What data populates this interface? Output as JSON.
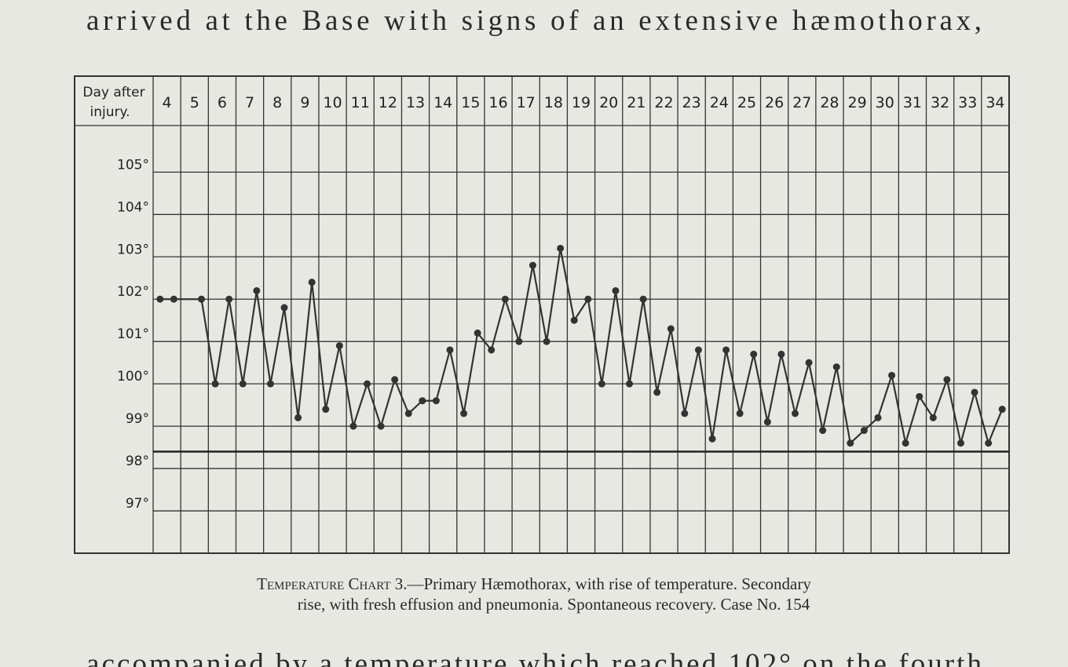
{
  "page_text": {
    "top": "arrived at the Base with signs of an extensive hæmothorax,",
    "bottom": "accompanied by a temperature which reached 102° on the fourth"
  },
  "chart_data": {
    "type": "line",
    "x_header": "Day after injury.",
    "caption_label": "Temperature Chart 3.",
    "caption_line1": "—Primary Hæmothorax, with rise of temperature.   Secondary",
    "caption_line2": "rise, with fresh effusion and pneumonia.   Spontaneous recovery.   Case No. 154",
    "color": "#333333",
    "xlim": [
      3.5,
      34.5
    ],
    "xticks": [
      4,
      5,
      6,
      7,
      8,
      9,
      10,
      11,
      12,
      13,
      14,
      15,
      16,
      17,
      18,
      19,
      20,
      21,
      22,
      23,
      24,
      25,
      26,
      27,
      28,
      29,
      30,
      31,
      32,
      33,
      34
    ],
    "ylim": [
      96,
      106.1
    ],
    "yticks": [
      {
        "value": 97,
        "label": "97°"
      },
      {
        "value": 98,
        "label": "98°"
      },
      {
        "value": 99,
        "label": "99°"
      },
      {
        "value": 100,
        "label": "100°"
      },
      {
        "value": 101,
        "label": "101°"
      },
      {
        "value": 102,
        "label": "102°"
      },
      {
        "value": 103,
        "label": "103°"
      },
      {
        "value": 104,
        "label": "104°"
      },
      {
        "value": 105,
        "label": "105°"
      }
    ],
    "grid": true,
    "normal_line": 98.4,
    "x": [
      3.75,
      4.25,
      5.25,
      5.75,
      6.25,
      6.75,
      7.25,
      7.75,
      8.25,
      8.75,
      9.25,
      9.75,
      10.25,
      10.75,
      11.25,
      11.75,
      12.25,
      12.75,
      13.25,
      13.75,
      14.25,
      14.75,
      15.25,
      15.75,
      16.25,
      16.75,
      17.25,
      17.75,
      18.25,
      18.75,
      19.25,
      19.75,
      20.25,
      20.75,
      21.25,
      21.75,
      22.25,
      22.75,
      23.25,
      23.75,
      24.25,
      24.75,
      25.25,
      25.75,
      26.25,
      26.75,
      27.25,
      27.75,
      28.25,
      28.75,
      29.25,
      29.75,
      30.25,
      30.75,
      31.25,
      31.75,
      32.25,
      32.75,
      33.25,
      33.75,
      34.25
    ],
    "values": [
      102.0,
      102.0,
      102.0,
      100.0,
      102.0,
      100.0,
      102.2,
      100.0,
      101.8,
      99.2,
      102.4,
      99.4,
      100.9,
      99.0,
      100.0,
      99.0,
      100.1,
      99.3,
      99.6,
      99.6,
      100.8,
      99.3,
      101.2,
      100.8,
      102.0,
      101.0,
      102.8,
      101.0,
      103.2,
      101.5,
      102.0,
      100.0,
      102.2,
      100.0,
      102.0,
      99.8,
      101.3,
      99.3,
      100.8,
      98.7,
      100.8,
      99.3,
      100.7,
      99.1,
      100.7,
      99.3,
      100.5,
      98.9,
      100.4,
      98.6,
      98.9,
      99.2,
      100.2,
      98.6,
      99.7,
      99.2,
      100.1,
      98.6,
      99.8,
      98.6,
      99.4
    ]
  }
}
